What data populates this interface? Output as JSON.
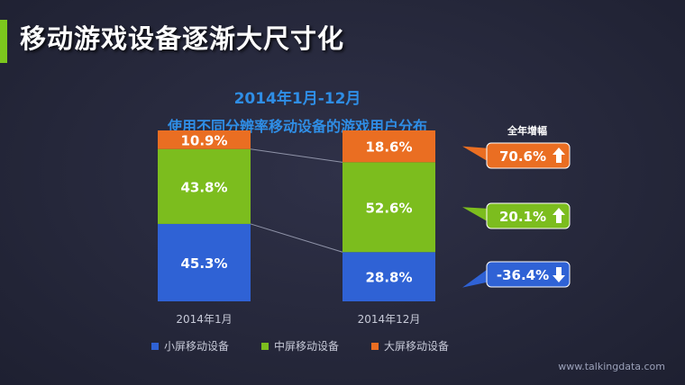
{
  "slide": {
    "title": "移动游戏设备逐渐大尺寸化",
    "subtitle_line1": "2014年1月-12月",
    "subtitle_line2": "使用不同分辨率移动设备的游戏用户分布",
    "growth_header": "全年增幅",
    "watermark": "www.talkingdata.com"
  },
  "colors": {
    "small": "#2f62d5",
    "medium": "#7cbd1e",
    "large": "#ea6e22",
    "accent": "#7cc71d",
    "subtitle": "#2f8ee6"
  },
  "chart_data": {
    "type": "bar",
    "stacked": true,
    "normalized": true,
    "categories": [
      "2014年1月",
      "2014年12月"
    ],
    "series": [
      {
        "name": "小屏移动设备",
        "values": [
          45.3,
          28.8
        ],
        "labels": [
          "45.3%",
          "28.8%"
        ],
        "growth": "-36.4%",
        "direction": "down"
      },
      {
        "name": "中屏移动设备",
        "values": [
          43.8,
          52.6
        ],
        "labels": [
          "43.8%",
          "52.6%"
        ],
        "growth": "20.1%",
        "direction": "up"
      },
      {
        "name": "大屏移动设备",
        "values": [
          10.9,
          18.6
        ],
        "labels": [
          "10.9%",
          "18.6%"
        ],
        "growth": "70.6%",
        "direction": "up"
      }
    ],
    "ylim": [
      0,
      100
    ],
    "grid": false,
    "legend_position": "bottom"
  }
}
